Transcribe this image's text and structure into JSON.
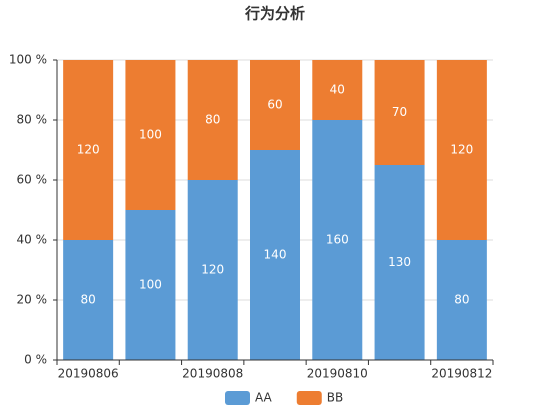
{
  "chart_data": {
    "type": "bar",
    "stacked": true,
    "normalize": true,
    "title": "行为分析",
    "categories": [
      "20190806",
      null,
      "20190808",
      null,
      "20190810",
      null,
      "20190812"
    ],
    "series": [
      {
        "name": "AA",
        "color": "#5b9bd5",
        "values": [
          80,
          100,
          120,
          140,
          160,
          130,
          80
        ]
      },
      {
        "name": "BB",
        "color": "#ed7d31",
        "values": [
          120,
          100,
          80,
          60,
          40,
          70,
          120
        ]
      }
    ],
    "ylim": [
      0,
      100
    ],
    "yticks": [
      {
        "value": 0,
        "label": "0 %"
      },
      {
        "value": 20,
        "label": "20 %"
      },
      {
        "value": 40,
        "label": "40 %"
      },
      {
        "value": 60,
        "label": "60 %"
      },
      {
        "value": 80,
        "label": "80 %"
      },
      {
        "value": 100,
        "label": "100 %"
      }
    ],
    "grid": true,
    "legend": "bottom"
  }
}
